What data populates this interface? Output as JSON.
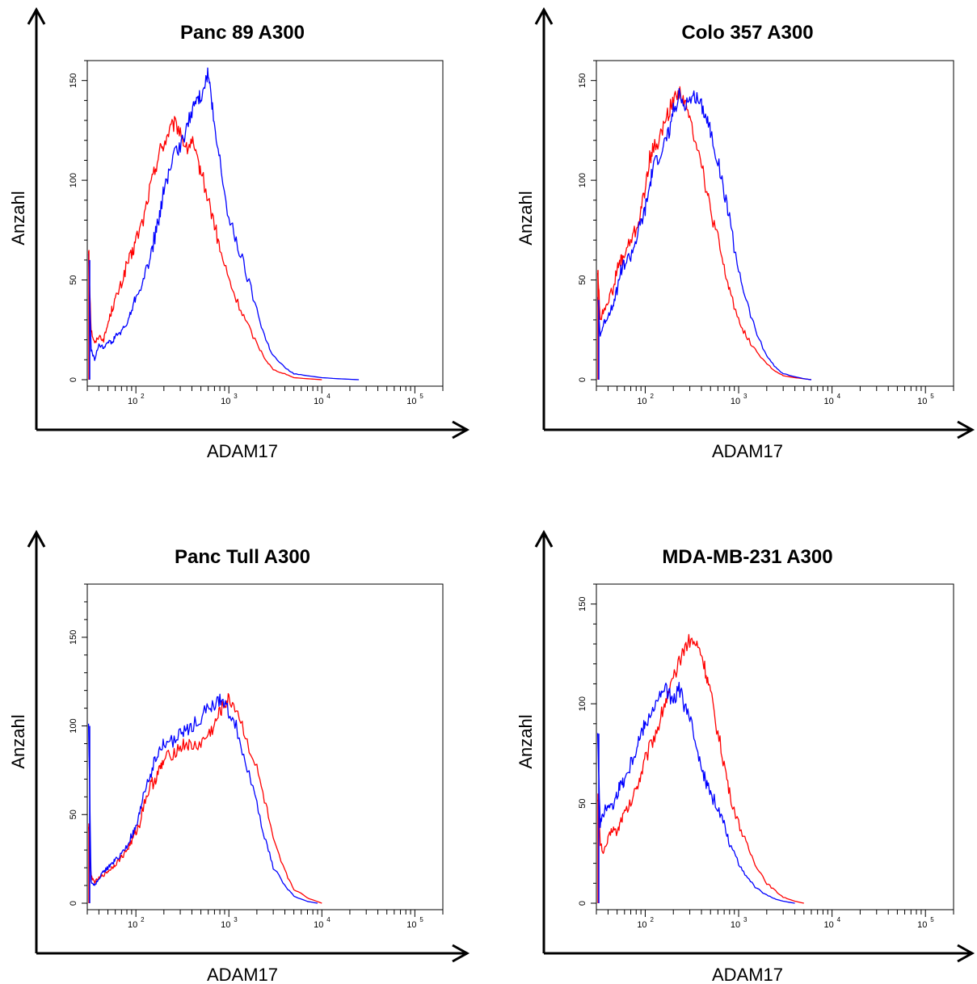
{
  "colors": {
    "series_red": "#ff0000",
    "series_blue": "#0000ff",
    "axis": "#000000"
  },
  "chart_data": [
    {
      "type": "line",
      "title": "Panc 89 A300",
      "xlabel": "ADAM17",
      "ylabel": "Anzahl",
      "xscale": "log",
      "xlim": [
        30,
        200000
      ],
      "ylim": [
        0,
        160
      ],
      "yticks": [
        "0",
        "50",
        "100",
        "150"
      ],
      "xticks": [
        "10^2",
        "10^3",
        "10^4",
        "10^5"
      ],
      "grid": false,
      "legend": "none",
      "series": [
        {
          "color": "#ff0000",
          "x": [
            31,
            33,
            36,
            40,
            45,
            50,
            55,
            60,
            70,
            80,
            90,
            100,
            120,
            140,
            160,
            180,
            200,
            230,
            260,
            300,
            350,
            400,
            450,
            500,
            600,
            700,
            800,
            1000,
            1200,
            1500,
            2000,
            2500,
            3000,
            4000,
            5000,
            7000,
            10000
          ],
          "y": [
            65,
            25,
            18,
            22,
            20,
            28,
            35,
            40,
            48,
            58,
            62,
            70,
            80,
            95,
            105,
            115,
            118,
            125,
            128,
            125,
            115,
            120,
            110,
            105,
            90,
            78,
            65,
            50,
            40,
            30,
            18,
            10,
            5,
            3,
            1,
            0.5,
            0
          ]
        },
        {
          "color": "#0000ff",
          "x": [
            31,
            33,
            36,
            40,
            45,
            50,
            55,
            60,
            70,
            80,
            90,
            100,
            120,
            140,
            160,
            180,
            200,
            230,
            260,
            300,
            350,
            400,
            450,
            500,
            550,
            600,
            650,
            700,
            800,
            1000,
            1200,
            1500,
            2000,
            2500,
            3000,
            4000,
            5000,
            7000,
            10000,
            15000,
            25000
          ],
          "y": [
            60,
            15,
            10,
            18,
            16,
            20,
            18,
            22,
            24,
            28,
            35,
            42,
            50,
            60,
            72,
            82,
            95,
            105,
            112,
            118,
            125,
            135,
            140,
            142,
            150,
            153,
            140,
            125,
            110,
            80,
            70,
            55,
            35,
            20,
            12,
            6,
            3,
            2,
            1,
            0.5,
            0
          ]
        }
      ]
    },
    {
      "type": "line",
      "title": "Colo 357 A300",
      "xlabel": "ADAM17",
      "ylabel": "Anzahl",
      "xscale": "log",
      "xlim": [
        30,
        200000
      ],
      "ylim": [
        0,
        160
      ],
      "yticks": [
        "0",
        "50",
        "100",
        "150"
      ],
      "xticks": [
        "10^2",
        "10^3",
        "10^4",
        "10^5"
      ],
      "grid": false,
      "legend": "none",
      "series": [
        {
          "color": "#ff0000",
          "x": [
            31,
            33,
            36,
            40,
            45,
            50,
            55,
            60,
            70,
            80,
            90,
            100,
            110,
            120,
            140,
            160,
            180,
            200,
            230,
            260,
            300,
            350,
            400,
            450,
            500,
            600,
            700,
            800,
            1000,
            1200,
            1500,
            2000,
            2500,
            3000,
            4000,
            5000,
            6000
          ],
          "y": [
            55,
            30,
            35,
            40,
            45,
            55,
            60,
            62,
            70,
            75,
            85,
            95,
            110,
            115,
            120,
            128,
            135,
            140,
            145,
            140,
            130,
            120,
            110,
            95,
            85,
            70,
            55,
            45,
            30,
            22,
            15,
            8,
            4,
            2,
            1,
            0.5,
            0
          ]
        },
        {
          "color": "#0000ff",
          "x": [
            31,
            33,
            36,
            40,
            45,
            50,
            55,
            60,
            70,
            80,
            90,
            100,
            110,
            120,
            140,
            160,
            180,
            200,
            230,
            260,
            300,
            350,
            400,
            450,
            500,
            600,
            700,
            800,
            1000,
            1200,
            1500,
            2000,
            2500,
            3000,
            4000,
            5000,
            6000
          ],
          "y": [
            40,
            22,
            28,
            32,
            38,
            45,
            55,
            58,
            62,
            70,
            78,
            85,
            95,
            105,
            112,
            118,
            125,
            135,
            142,
            138,
            140,
            142,
            138,
            132,
            125,
            110,
            95,
            80,
            55,
            40,
            25,
            12,
            6,
            3,
            1.5,
            0.5,
            0
          ]
        }
      ]
    },
    {
      "type": "line",
      "title": "Panc Tull  A300",
      "xlabel": "ADAM17",
      "ylabel": "Anzahl",
      "xscale": "log",
      "xlim": [
        30,
        200000
      ],
      "ylim": [
        0,
        180
      ],
      "yticks": [
        "0",
        "50",
        "100",
        "150"
      ],
      "xticks": [
        "10^2",
        "10^3",
        "10^4",
        "10^5"
      ],
      "grid": false,
      "legend": "none",
      "series": [
        {
          "color": "#ff0000",
          "x": [
            31,
            33,
            36,
            40,
            45,
            50,
            55,
            60,
            70,
            80,
            90,
            100,
            110,
            120,
            140,
            160,
            180,
            200,
            250,
            300,
            350,
            400,
            500,
            600,
            700,
            800,
            900,
            1000,
            1200,
            1500,
            2000,
            2500,
            3000,
            4000,
            5000,
            7000,
            10000
          ],
          "y": [
            45,
            15,
            12,
            14,
            16,
            18,
            20,
            22,
            26,
            30,
            35,
            40,
            45,
            55,
            65,
            70,
            75,
            80,
            85,
            88,
            90,
            88,
            90,
            95,
            100,
            108,
            112,
            115,
            110,
            95,
            75,
            55,
            35,
            18,
            8,
            3,
            0
          ]
        },
        {
          "color": "#0000ff",
          "x": [
            31,
            33,
            36,
            40,
            45,
            50,
            55,
            60,
            70,
            80,
            90,
            100,
            110,
            120,
            140,
            160,
            180,
            200,
            250,
            300,
            350,
            400,
            500,
            600,
            700,
            800,
            900,
            1000,
            1200,
            1500,
            2000,
            2500,
            3000,
            4000,
            5000,
            7000,
            9000
          ],
          "y": [
            100,
            12,
            10,
            14,
            18,
            20,
            22,
            24,
            28,
            32,
            38,
            42,
            50,
            62,
            72,
            80,
            86,
            90,
            92,
            95,
            98,
            100,
            105,
            110,
            112,
            114,
            112,
            108,
            100,
            80,
            55,
            35,
            20,
            10,
            4,
            1,
            0
          ]
        }
      ]
    },
    {
      "type": "line",
      "title": "MDA-MB-231 A300",
      "xlabel": "ADAM17",
      "ylabel": "Anzahl",
      "xscale": "log",
      "xlim": [
        30,
        200000
      ],
      "ylim": [
        0,
        160
      ],
      "yticks": [
        "0",
        "50",
        "100",
        "150"
      ],
      "xticks": [
        "10^2",
        "10^3",
        "10^4",
        "10^5"
      ],
      "grid": false,
      "legend": "none",
      "series": [
        {
          "color": "#ff0000",
          "x": [
            31,
            33,
            36,
            40,
            45,
            50,
            55,
            60,
            70,
            80,
            90,
            100,
            120,
            140,
            160,
            180,
            200,
            230,
            260,
            300,
            350,
            400,
            450,
            500,
            600,
            700,
            800,
            1000,
            1200,
            1500,
            2000,
            2500,
            3000,
            4000,
            5000
          ],
          "y": [
            55,
            30,
            25,
            32,
            38,
            35,
            42,
            45,
            50,
            58,
            65,
            72,
            82,
            90,
            100,
            105,
            112,
            120,
            128,
            132,
            130,
            125,
            115,
            105,
            85,
            70,
            55,
            40,
            30,
            20,
            10,
            6,
            3,
            1,
            0
          ]
        },
        {
          "color": "#0000ff",
          "x": [
            31,
            33,
            36,
            40,
            45,
            50,
            55,
            60,
            70,
            80,
            90,
            100,
            120,
            140,
            160,
            180,
            200,
            230,
            260,
            300,
            350,
            400,
            450,
            500,
            600,
            700,
            800,
            1000,
            1200,
            1500,
            2000,
            2500,
            3000,
            4000
          ],
          "y": [
            85,
            40,
            45,
            50,
            48,
            55,
            60,
            62,
            70,
            78,
            85,
            90,
            98,
            102,
            108,
            105,
            100,
            108,
            100,
            92,
            80,
            70,
            60,
            55,
            48,
            40,
            30,
            20,
            14,
            8,
            4,
            2,
            1,
            0
          ]
        }
      ]
    }
  ]
}
